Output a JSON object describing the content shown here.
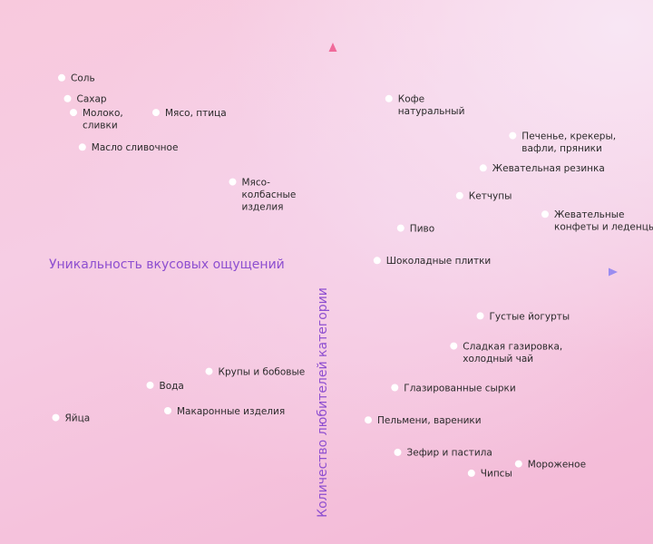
{
  "chart_data": {
    "type": "scatter",
    "xlabel": "Уникальность вкусовых ощущений",
    "ylabel": "Количество любителей категории",
    "grid": false,
    "legend": "none",
    "colors": {
      "x_axis_start": "#f1b9d4",
      "x_axis_end": "#9a8cf0",
      "y_axis_top": "#f06a9a",
      "y_axis_bottom": "#a69ae6",
      "title": "#8e4fd0",
      "point": "#ffffff"
    },
    "points": [
      {
        "label": [
          "Соль"
        ],
        "x": -0.92,
        "y": 0.84
      },
      {
        "label": [
          "Сахар"
        ],
        "x": -0.9,
        "y": 0.75
      },
      {
        "label": [
          "Молоко,",
          "сливки"
        ],
        "x": -0.88,
        "y": 0.69
      },
      {
        "label": [
          "Мясо, птица"
        ],
        "x": -0.6,
        "y": 0.69
      },
      {
        "label": [
          "Масло сливочное"
        ],
        "x": -0.85,
        "y": 0.54
      },
      {
        "label": [
          "Мясо-",
          "колбасные",
          "изделия"
        ],
        "x": -0.34,
        "y": 0.39
      },
      {
        "label": [
          "Кофе",
          "натуральный"
        ],
        "x": 0.19,
        "y": 0.75
      },
      {
        "label": [
          "Печенье, крекеры,",
          "вафли, пряники"
        ],
        "x": 0.61,
        "y": 0.59
      },
      {
        "label": [
          "Жевательная резинка"
        ],
        "x": 0.51,
        "y": 0.45
      },
      {
        "label": [
          "Кетчупы"
        ],
        "x": 0.43,
        "y": 0.33
      },
      {
        "label": [
          "Жевательные",
          "конфеты и леденцы"
        ],
        "x": 0.72,
        "y": 0.25
      },
      {
        "label": [
          "Пиво"
        ],
        "x": 0.23,
        "y": 0.19
      },
      {
        "label": [
          "Шоколадные плитки"
        ],
        "x": 0.15,
        "y": 0.05
      },
      {
        "label": [
          "Густые йогурты"
        ],
        "x": 0.5,
        "y": -0.19
      },
      {
        "label": [
          "Сладкая газировка,",
          "холодный чай"
        ],
        "x": 0.41,
        "y": -0.32
      },
      {
        "label": [
          "Крупы и бобовые"
        ],
        "x": -0.42,
        "y": -0.43
      },
      {
        "label": [
          "Вода"
        ],
        "x": -0.62,
        "y": -0.49
      },
      {
        "label": [
          "Глазированные сырки"
        ],
        "x": 0.21,
        "y": -0.5
      },
      {
        "label": [
          "Макаронные изделия"
        ],
        "x": -0.56,
        "y": -0.6
      },
      {
        "label": [
          "Яйца"
        ],
        "x": -0.94,
        "y": -0.63
      },
      {
        "label": [
          "Пельмени, вареники"
        ],
        "x": 0.12,
        "y": -0.64
      },
      {
        "label": [
          "Зефир и пастила"
        ],
        "x": 0.22,
        "y": -0.78
      },
      {
        "label": [
          "Мороженое"
        ],
        "x": 0.63,
        "y": -0.83
      },
      {
        "label": [
          "Чипсы"
        ],
        "x": 0.47,
        "y": -0.87
      }
    ]
  }
}
